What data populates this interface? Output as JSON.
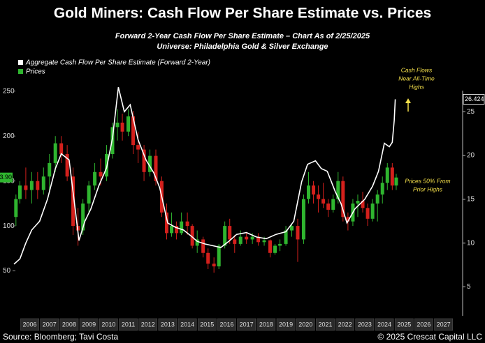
{
  "chart_data": {
    "type": "candlestick",
    "title": "Gold Miners: Cash Flow Per Share Estimate vs. Prices",
    "subtitle": [
      "Forward 2-Year Cash Flow Per Share Estimate – Chart As of 2/25/2025",
      "Universe: Philadelphia Gold  & Silver Exchange"
    ],
    "source": "Source: Bloomberg; Tavi Costa",
    "copyright": "© 2025 Crescat Capital LLC",
    "xlim": [
      2005.7,
      2028.4
    ],
    "xticks": [
      {
        "value": 2006.5,
        "label": "2006"
      },
      {
        "value": 2007.5,
        "label": "2007"
      },
      {
        "value": 2008.5,
        "label": "2008"
      },
      {
        "value": 2009.5,
        "label": "2009"
      },
      {
        "value": 2010.5,
        "label": "2010"
      },
      {
        "value": 2011.5,
        "label": "2011"
      },
      {
        "value": 2012.5,
        "label": "2012"
      },
      {
        "value": 2013.5,
        "label": "2013"
      },
      {
        "value": 2014.5,
        "label": "2014"
      },
      {
        "value": 2015.5,
        "label": "2015"
      },
      {
        "value": 2016.5,
        "label": "2016"
      },
      {
        "value": 2017.5,
        "label": "2017"
      },
      {
        "value": 2018.5,
        "label": "2018"
      },
      {
        "value": 2019.5,
        "label": "2019"
      },
      {
        "value": 2020.5,
        "label": "2020"
      },
      {
        "value": 2021.5,
        "label": "2021"
      },
      {
        "value": 2022.5,
        "label": "2022"
      },
      {
        "value": 2023.5,
        "label": "2023"
      },
      {
        "value": 2024.5,
        "label": "2024"
      },
      {
        "value": 2025.5,
        "label": "2025"
      },
      {
        "value": 2026.5,
        "label": "2026"
      },
      {
        "value": 2027.5,
        "label": "2027"
      }
    ],
    "ylim": [
      0,
      270
    ],
    "yticks": [
      50,
      100,
      150,
      200,
      250
    ],
    "y2lim": [
      1.7,
      29.4
    ],
    "y2ticks": [
      5,
      10,
      15,
      20,
      25
    ],
    "candles": {
      "name": "Prices",
      "color": "#2fb52f",
      "up_color": "#2fb52f",
      "down_color": "#d4201c",
      "last_label": {
        "value": 153.9,
        "label": "153.90"
      },
      "x": [
        2005.8,
        2006.0,
        2006.3,
        2006.6,
        2006.9,
        2007.2,
        2007.5,
        2007.8,
        2008.1,
        2008.4,
        2008.7,
        2008.95,
        2009.2,
        2009.5,
        2009.8,
        2010.1,
        2010.4,
        2010.7,
        2010.95,
        2011.2,
        2011.5,
        2011.75,
        2012.0,
        2012.3,
        2012.6,
        2012.9,
        2013.2,
        2013.45,
        2013.7,
        2013.95,
        2014.2,
        2014.5,
        2014.75,
        2015.0,
        2015.3,
        2015.55,
        2015.85,
        2016.1,
        2016.4,
        2016.65,
        2016.9,
        2017.2,
        2017.5,
        2017.8,
        2018.1,
        2018.4,
        2018.7,
        2018.95,
        2019.2,
        2019.5,
        2019.8,
        2020.1,
        2020.4,
        2020.65,
        2020.9,
        2021.15,
        2021.4,
        2021.65,
        2021.9,
        2022.15,
        2022.4,
        2022.65,
        2022.9,
        2023.15,
        2023.4,
        2023.65,
        2023.9,
        2024.15,
        2024.4,
        2024.65,
        2024.9,
        2025.1
      ],
      "open": [
        110,
        130,
        145,
        140,
        150,
        140,
        155,
        170,
        192,
        180,
        155,
        100,
        95,
        125,
        145,
        160,
        155,
        180,
        210,
        215,
        205,
        222,
        190,
        185,
        160,
        178,
        150,
        115,
        92,
        100,
        92,
        105,
        100,
        78,
        85,
        70,
        58,
        55,
        78,
        100,
        85,
        80,
        88,
        85,
        88,
        82,
        84,
        70,
        78,
        80,
        95,
        100,
        85,
        130,
        145,
        135,
        130,
        125,
        118,
        130,
        150,
        110,
        105,
        125,
        128,
        120,
        108,
        125,
        135,
        148,
        165,
        145
      ],
      "high": [
        135,
        150,
        165,
        160,
        160,
        165,
        180,
        200,
        200,
        190,
        165,
        120,
        130,
        150,
        170,
        175,
        190,
        215,
        230,
        225,
        230,
        228,
        205,
        190,
        185,
        185,
        155,
        125,
        115,
        105,
        115,
        115,
        102,
        95,
        88,
        75,
        65,
        80,
        105,
        108,
        90,
        95,
        92,
        92,
        92,
        88,
        85,
        80,
        85,
        100,
        102,
        108,
        135,
        160,
        150,
        145,
        148,
        130,
        135,
        160,
        155,
        115,
        130,
        135,
        138,
        125,
        130,
        140,
        155,
        170,
        170,
        158
      ],
      "low": [
        100,
        125,
        130,
        125,
        130,
        135,
        140,
        160,
        170,
        150,
        90,
        78,
        90,
        115,
        140,
        145,
        150,
        175,
        195,
        195,
        200,
        180,
        170,
        150,
        155,
        145,
        110,
        85,
        88,
        85,
        90,
        90,
        75,
        70,
        65,
        52,
        48,
        52,
        75,
        80,
        70,
        78,
        80,
        80,
        78,
        78,
        65,
        68,
        72,
        78,
        88,
        60,
        80,
        125,
        125,
        115,
        120,
        110,
        115,
        125,
        105,
        95,
        100,
        110,
        115,
        100,
        105,
        105,
        125,
        140,
        140,
        140
      ],
      "close": [
        130,
        145,
        140,
        150,
        140,
        155,
        170,
        192,
        180,
        155,
        100,
        95,
        125,
        145,
        160,
        155,
        180,
        210,
        215,
        205,
        222,
        190,
        185,
        160,
        178,
        150,
        115,
        92,
        100,
        92,
        105,
        100,
        78,
        85,
        70,
        58,
        55,
        78,
        100,
        85,
        80,
        88,
        85,
        88,
        82,
        84,
        70,
        78,
        80,
        95,
        100,
        85,
        130,
        145,
        135,
        130,
        125,
        118,
        130,
        150,
        110,
        105,
        125,
        128,
        120,
        108,
        125,
        135,
        148,
        165,
        145,
        153.9
      ]
    },
    "series": [
      {
        "name": "Aggregate Cash Flow Per Share Estimate (Forward 2-Year)",
        "color": "#ffffff",
        "axis": "y2",
        "last_label": {
          "value": 26.424,
          "label": "26.424"
        },
        "x": [
          2005.7,
          2006.0,
          2006.3,
          2006.6,
          2007.0,
          2007.4,
          2007.8,
          2008.1,
          2008.5,
          2008.8,
          2009.0,
          2009.3,
          2009.6,
          2010.0,
          2010.4,
          2010.7,
          2011.0,
          2011.3,
          2011.6,
          2012.0,
          2012.4,
          2012.8,
          2013.1,
          2013.5,
          2013.9,
          2014.3,
          2014.7,
          2015.0,
          2015.4,
          2015.8,
          2016.2,
          2016.6,
          2017.0,
          2017.5,
          2018.0,
          2018.5,
          2019.0,
          2019.5,
          2019.9,
          2020.3,
          2020.6,
          2021.0,
          2021.3,
          2021.6,
          2022.0,
          2022.3,
          2022.6,
          2023.0,
          2023.5,
          2023.9,
          2024.2,
          2024.5,
          2024.75,
          2024.9,
          2025.0,
          2025.05
        ],
        "values": [
          7.6,
          8.2,
          10.0,
          11.5,
          12.5,
          15.0,
          18.5,
          20.2,
          19.5,
          14.0,
          10.3,
          12.5,
          13.9,
          16.5,
          18.6,
          22.0,
          27.8,
          25.0,
          25.8,
          21.8,
          19.5,
          18.0,
          16.3,
          12.3,
          11.8,
          11.5,
          10.8,
          10.2,
          9.9,
          9.7,
          9.5,
          10.2,
          11.0,
          11.2,
          10.7,
          10.5,
          11.0,
          11.3,
          12.5,
          17.0,
          19.0,
          19.4,
          18.5,
          18.2,
          15.9,
          14.5,
          12.3,
          13.9,
          15.0,
          16.5,
          18.2,
          21.4,
          21.0,
          21.5,
          24.0,
          26.424
        ]
      }
    ],
    "annotations": [
      {
        "lines": [
          "Cash Flows",
          "Near All-Time",
          "Highs"
        ],
        "color": "#f5e04a"
      },
      {
        "lines": [
          "Prices 50% From",
          "Prior Highs"
        ],
        "color": "#f5e04a"
      }
    ],
    "legend": "top-left"
  }
}
